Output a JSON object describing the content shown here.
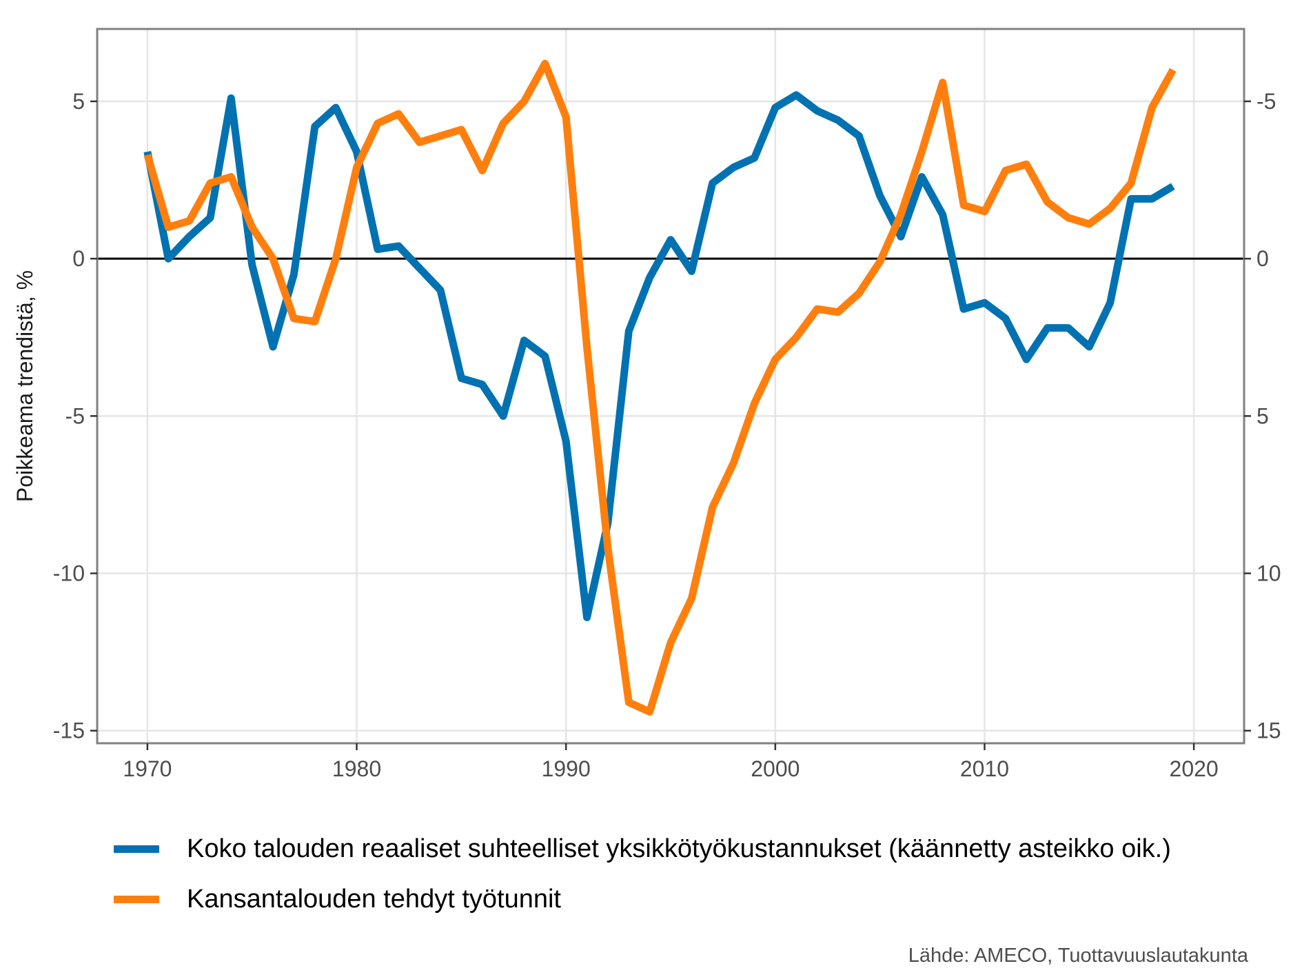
{
  "chart_data": {
    "type": "line",
    "ylabel": "Poikkeama trendistä, %",
    "y2_note": "secondary axis is the primary axis inverted (value = -primary)",
    "x_ticks": [
      1970,
      1980,
      1990,
      2000,
      2010,
      2020
    ],
    "y_ticks": [
      5,
      0,
      -5,
      -10,
      -15
    ],
    "y_tick_labels": [
      "5",
      "0",
      "-5",
      "-10",
      "-15"
    ],
    "y2_tick_labels": [
      "-5",
      "0",
      "5",
      "10",
      "15"
    ],
    "xlim": [
      1967.6,
      2022.4
    ],
    "ylim": [
      -15.4,
      7.3
    ],
    "grid": true,
    "zero_line": true,
    "legend_position": "bottom",
    "series": [
      {
        "name": "Koko talouden reaaliset suhteelliset yksikkötyökustannukset (käännetty asteikko oik.)",
        "color": "#0072B2",
        "axis": "right-inverted",
        "x": [
          1970,
          1971,
          1972,
          1973,
          1974,
          1975,
          1976,
          1977,
          1978,
          1979,
          1980,
          1981,
          1982,
          1983,
          1984,
          1985,
          1986,
          1987,
          1988,
          1989,
          1990,
          1991,
          1992,
          1993,
          1994,
          1995,
          1996,
          1997,
          1998,
          1999,
          2000,
          2001,
          2002,
          2003,
          2004,
          2005,
          2006,
          2007,
          2008,
          2009,
          2010,
          2011,
          2012,
          2013,
          2014,
          2015,
          2016,
          2017,
          2018,
          2019
        ],
        "values": [
          -3.4,
          0.0,
          -0.7,
          -1.3,
          -5.1,
          0.2,
          2.8,
          0.5,
          -4.2,
          -4.8,
          -3.4,
          -0.3,
          -0.4,
          0.3,
          1.0,
          3.8,
          4.0,
          5.0,
          2.6,
          3.1,
          5.8,
          11.4,
          8.4,
          2.3,
          0.6,
          -0.6,
          0.4,
          -2.4,
          -2.9,
          -3.2,
          -4.8,
          -5.2,
          -4.7,
          -4.4,
          -3.9,
          -2.0,
          -0.7,
          -2.6,
          -1.4,
          1.6,
          1.4,
          1.9,
          3.2,
          2.2,
          2.2,
          2.8,
          1.4,
          -1.9,
          -1.9,
          -2.3
        ]
      },
      {
        "name": "Kansantalouden tehdyt työtunnit",
        "color": "#FF7F0E",
        "axis": "left",
        "x": [
          1970,
          1971,
          1972,
          1973,
          1974,
          1975,
          1976,
          1977,
          1978,
          1979,
          1980,
          1981,
          1982,
          1983,
          1984,
          1985,
          1986,
          1987,
          1988,
          1989,
          1990,
          1991,
          1992,
          1993,
          1994,
          1995,
          1996,
          1997,
          1998,
          1999,
          2000,
          2001,
          2002,
          2003,
          2004,
          2005,
          2006,
          2007,
          2008,
          2009,
          2010,
          2011,
          2012,
          2013,
          2014,
          2015,
          2016,
          2017,
          2018,
          2019
        ],
        "values": [
          3.3,
          1.0,
          1.2,
          2.4,
          2.6,
          1.0,
          0.0,
          -1.9,
          -2.0,
          0.0,
          2.9,
          4.3,
          4.6,
          3.7,
          3.9,
          4.1,
          2.8,
          4.3,
          5.0,
          6.2,
          4.5,
          -2.8,
          -9.2,
          -14.1,
          -14.4,
          -12.2,
          -10.8,
          -7.9,
          -6.5,
          -4.6,
          -3.2,
          -2.5,
          -1.6,
          -1.7,
          -1.1,
          -0.1,
          1.4,
          3.4,
          5.6,
          1.7,
          1.5,
          2.8,
          3.0,
          1.8,
          1.3,
          1.1,
          1.6,
          2.4,
          4.8,
          6.0
        ]
      }
    ]
  },
  "legend": {
    "items": [
      {
        "label": "Koko talouden reaaliset suhteelliset yksikkötyökustannukset (käännetty asteikko oik.)",
        "color": "#0072B2"
      },
      {
        "label": "Kansantalouden tehdyt työtunnit",
        "color": "#FF7F0E"
      }
    ]
  },
  "source": "Lähde: AMECO, Tuottavuuslautakunta"
}
